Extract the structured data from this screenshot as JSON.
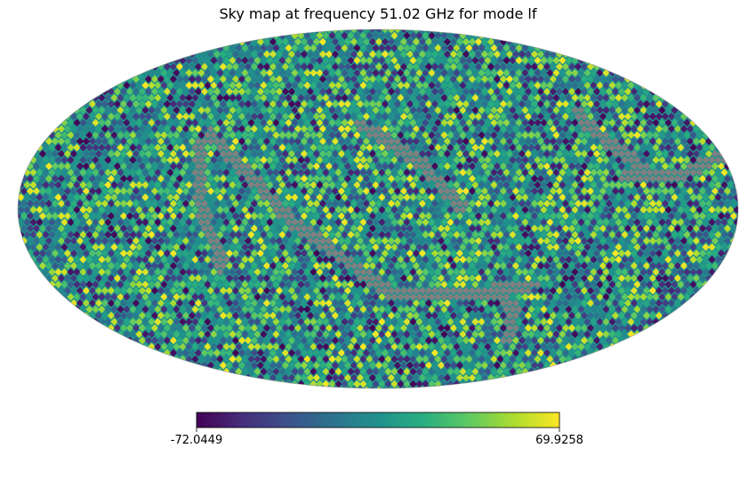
{
  "chart_data": {
    "type": "heatmap",
    "title": "Sky map at frequency 51.02 GHz for mode lf",
    "projection": "mollweide",
    "colormap": "viridis",
    "colorbar": {
      "orientation": "horizontal",
      "min": -72.0449,
      "max": 69.9258,
      "tick_labels": [
        "-72.0449",
        "69.9258"
      ]
    },
    "masked_color": "#808080",
    "colors": {
      "viridis_0": "#440154",
      "viridis_25": "#3b528b",
      "viridis_50": "#21918c",
      "viridis_75": "#5ec962",
      "viridis_100": "#fde725"
    }
  }
}
